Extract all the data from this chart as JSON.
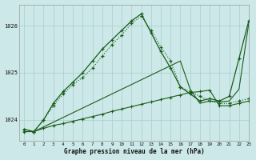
{
  "title": "Graphe pression niveau de la mer (hPa)",
  "background_color": "#cce8e8",
  "grid_color": "#aacece",
  "line_color": "#1a5c1a",
  "xlim": [
    -0.5,
    23
  ],
  "ylim": [
    1023.55,
    1026.45
  ],
  "yticks": [
    1024,
    1025,
    1026
  ],
  "xticks": [
    0,
    1,
    2,
    3,
    4,
    5,
    6,
    7,
    8,
    9,
    10,
    11,
    12,
    13,
    14,
    15,
    16,
    17,
    18,
    19,
    20,
    21,
    22,
    23
  ],
  "curve_dotted": [
    1023.8,
    1023.75,
    1024.0,
    1024.3,
    1024.55,
    1024.75,
    1024.9,
    1025.1,
    1025.35,
    1025.6,
    1025.8,
    1026.05,
    1026.2,
    1025.9,
    1025.55,
    1025.25,
    1024.7,
    1024.6,
    1024.5,
    1024.4,
    1024.35,
    1024.35,
    1024.4,
    1024.45
  ],
  "curve_solid": [
    1023.8,
    1023.75,
    1024.0,
    1024.35,
    1024.6,
    1024.8,
    1025.0,
    1025.25,
    1025.5,
    1025.7,
    1025.9,
    1026.1,
    1026.25,
    1025.85,
    1025.45,
    1025.1,
    1024.7,
    1024.55,
    1024.4,
    1024.45,
    1024.4,
    1024.5,
    1025.3,
    1026.1
  ],
  "line_straight": [
    1023.75,
    1023.75,
    1023.85,
    1023.95,
    1024.05,
    1024.15,
    1024.25,
    1024.35,
    1024.45,
    1024.55,
    1024.65,
    1024.75,
    1024.85,
    1024.95,
    1025.05,
    1025.15,
    1025.25,
    1024.65,
    1024.35,
    1024.4,
    1024.38,
    1024.4,
    1024.65,
    1026.05
  ],
  "curve_flat": [
    1023.75,
    1023.75,
    1023.82,
    1023.88,
    1023.92,
    1023.97,
    1024.02,
    1024.07,
    1024.12,
    1024.18,
    1024.23,
    1024.28,
    1024.33,
    1024.38,
    1024.43,
    1024.48,
    1024.53,
    1024.58,
    1024.6,
    1024.63,
    1024.3,
    1024.3,
    1024.35,
    1024.4
  ]
}
